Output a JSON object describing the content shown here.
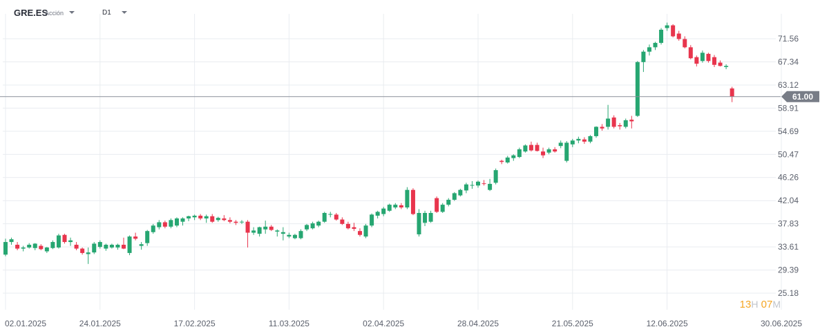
{
  "header": {
    "symbol": "GRE.ES",
    "type": "Acción",
    "timeframe": "D1"
  },
  "countdown": {
    "hours": "13",
    "h_unit": "H",
    "minutes": "07",
    "m_unit": "M"
  },
  "colors": {
    "up": "#26a671",
    "down": "#e8354d",
    "grid": "#e9ecf0",
    "axis_text": "#5a5f6b",
    "price_line": "#8a8f99",
    "price_tag": "#787d87"
  },
  "chart_data": {
    "type": "candlestick",
    "title": "",
    "xlabel": "",
    "ylabel": "",
    "ylim": [
      25.18,
      75.78
    ],
    "y_ticks": [
      "71.56",
      "67.34",
      "63.12",
      "58.91",
      "54.69",
      "50.47",
      "46.26",
      "42.04",
      "37.83",
      "33.61",
      "29.39",
      "25.18"
    ],
    "x_ticks": [
      "02.01.2025",
      "24.01.2025",
      "17.02.2025",
      "11.03.2025",
      "02.04.2025",
      "28.04.2025",
      "21.05.2025",
      "12.06.2025",
      "30.06.2025"
    ],
    "current_price": "61.00",
    "grid": true,
    "candles": [
      [
        "02.01.2025",
        32.2,
        35.1,
        31.9,
        34.5
      ],
      [
        "03.01.2025",
        34.5,
        35.3,
        34.0,
        35.0
      ],
      [
        "06.01.2025",
        34.0,
        34.5,
        33.0,
        33.3
      ],
      [
        "07.01.2025",
        33.3,
        33.8,
        32.8,
        33.5
      ],
      [
        "08.01.2025",
        33.5,
        34.3,
        33.3,
        34.0
      ],
      [
        "09.01.2025",
        33.4,
        34.3,
        33.0,
        34.2
      ],
      [
        "10.01.2025",
        33.8,
        34.1,
        33.0,
        33.2
      ],
      [
        "13.01.2025",
        32.8,
        33.6,
        32.5,
        33.5
      ],
      [
        "14.01.2025",
        33.4,
        34.8,
        33.2,
        34.5
      ],
      [
        "15.01.2025",
        33.5,
        36.0,
        33.3,
        35.7
      ],
      [
        "16.01.2025",
        35.8,
        36.0,
        34.2,
        34.5
      ],
      [
        "17.01.2025",
        34.5,
        35.3,
        33.8,
        34.8
      ],
      [
        "20.01.2025",
        34.0,
        34.5,
        33.0,
        33.3
      ],
      [
        "21.01.2025",
        33.3,
        33.5,
        32.2,
        32.5
      ],
      [
        "22.01.2025",
        32.3,
        33.5,
        30.5,
        32.6
      ],
      [
        "23.01.2025",
        32.6,
        34.5,
        32.3,
        34.2
      ],
      [
        "24.01.2025",
        33.6,
        34.8,
        33.3,
        34.5
      ],
      [
        "27.01.2025",
        33.3,
        34.2,
        32.9,
        34.0
      ],
      [
        "28.01.2025",
        33.5,
        34.2,
        33.3,
        34.0
      ],
      [
        "29.01.2025",
        33.5,
        34.2,
        33.1,
        34.0
      ],
      [
        "30.01.2025",
        34.0,
        35.3,
        33.2,
        33.3
      ],
      [
        "31.01.2025",
        32.5,
        35.7,
        32.1,
        35.5
      ],
      [
        "03.02.2025",
        35.5,
        36.2,
        34.8,
        35.1
      ],
      [
        "04.02.2025",
        33.8,
        34.5,
        33.1,
        34.1
      ],
      [
        "05.02.2025",
        34.3,
        36.7,
        33.8,
        36.5
      ],
      [
        "06.02.2025",
        36.3,
        37.8,
        36.0,
        37.5
      ],
      [
        "07.02.2025",
        37.2,
        38.5,
        36.8,
        38.1
      ],
      [
        "10.02.2025",
        38.1,
        38.4,
        37.0,
        37.3
      ],
      [
        "11.02.2025",
        37.3,
        38.8,
        37.0,
        38.5
      ],
      [
        "12.02.2025",
        37.5,
        39.0,
        37.2,
        38.8
      ],
      [
        "13.02.2025",
        38.2,
        39.0,
        37.5,
        38.8
      ],
      [
        "14.02.2025",
        38.8,
        39.3,
        38.3,
        39.2
      ],
      [
        "17.02.2025",
        39.0,
        39.5,
        38.5,
        39.3
      ],
      [
        "18.02.2025",
        39.3,
        39.6,
        38.5,
        38.8
      ],
      [
        "19.02.2025",
        38.8,
        39.5,
        38.0,
        39.2
      ],
      [
        "20.02.2025",
        39.2,
        39.6,
        38.0,
        38.2
      ],
      [
        "21.02.2025",
        38.5,
        39.1,
        38.2,
        38.9
      ],
      [
        "24.02.2025",
        38.8,
        39.4,
        38.3,
        38.5
      ],
      [
        "25.02.2025",
        38.5,
        39.0,
        37.9,
        38.2
      ],
      [
        "26.02.2025",
        38.2,
        38.5,
        37.6,
        38.0
      ],
      [
        "27.02.2025",
        38.1,
        38.5,
        37.8,
        38.2
      ],
      [
        "28.02.2025",
        38.2,
        38.5,
        33.5,
        36.2
      ],
      [
        "03.03.2025",
        36.2,
        37.2,
        35.8,
        36.6
      ],
      [
        "04.03.2025",
        36.0,
        37.3,
        35.5,
        37.2
      ],
      [
        "05.03.2025",
        36.8,
        38.4,
        36.0,
        37.3
      ],
      [
        "06.03.2025",
        37.3,
        37.6,
        36.5,
        36.7
      ],
      [
        "07.03.2025",
        36.4,
        36.8,
        35.5,
        36.6
      ],
      [
        "10.03.2025",
        36.0,
        37.2,
        34.8,
        36.3
      ],
      [
        "11.03.2025",
        35.5,
        36.2,
        35.2,
        35.8
      ],
      [
        "12.03.2025",
        35.2,
        36.0,
        35.0,
        35.8
      ],
      [
        "13.03.2025",
        35.2,
        36.8,
        35.0,
        36.5
      ],
      [
        "14.03.2025",
        36.8,
        37.8,
        36.5,
        37.6
      ],
      [
        "17.03.2025",
        37.0,
        38.2,
        36.8,
        37.9
      ],
      [
        "18.03.2025",
        37.5,
        38.4,
        37.2,
        38.2
      ],
      [
        "19.03.2025",
        38.2,
        40.0,
        38.0,
        39.8
      ],
      [
        "20.03.2025",
        39.5,
        40.0,
        39.0,
        39.6
      ],
      [
        "21.03.2025",
        39.5,
        39.8,
        38.4,
        38.6
      ],
      [
        "24.03.2025",
        38.6,
        39.0,
        37.6,
        37.8
      ],
      [
        "25.03.2025",
        37.8,
        38.2,
        36.8,
        37.0
      ],
      [
        "26.03.2025",
        37.2,
        38.0,
        36.5,
        36.9
      ],
      [
        "27.03.2025",
        36.5,
        37.0,
        35.5,
        35.8
      ],
      [
        "28.03.2025",
        35.5,
        37.8,
        35.2,
        37.5
      ],
      [
        "31.03.2025",
        37.5,
        39.7,
        37.2,
        39.5
      ],
      [
        "01.04.2025",
        39.3,
        40.2,
        38.8,
        40.0
      ],
      [
        "02.04.2025",
        39.6,
        40.9,
        39.2,
        40.6
      ],
      [
        "03.04.2025",
        40.2,
        41.5,
        40.0,
        41.3
      ],
      [
        "04.04.2025",
        40.8,
        41.6,
        40.5,
        41.3
      ],
      [
        "07.04.2025",
        41.2,
        41.6,
        40.5,
        40.8
      ],
      [
        "08.04.2025",
        40.8,
        44.5,
        40.5,
        44.0
      ],
      [
        "09.04.2025",
        44.0,
        44.3,
        39.4,
        39.6
      ],
      [
        "10.04.2025",
        35.9,
        40.5,
        35.5,
        39.8
      ],
      [
        "11.04.2025",
        38.0,
        40.2,
        37.4,
        39.8
      ],
      [
        "14.04.2025",
        38.2,
        40.2,
        38.0,
        39.8
      ],
      [
        "15.04.2025",
        42.5,
        42.8,
        39.8,
        40.0
      ],
      [
        "16.04.2025",
        40.0,
        41.6,
        39.8,
        41.3
      ],
      [
        "17.04.2025",
        41.3,
        42.5,
        41.0,
        42.2
      ],
      [
        "22.04.2025",
        42.2,
        43.6,
        42.0,
        43.4
      ],
      [
        "23.04.2025",
        43.0,
        44.2,
        42.8,
        44.0
      ],
      [
        "24.04.2025",
        43.9,
        45.3,
        43.4,
        45.0
      ],
      [
        "25.04.2025",
        44.8,
        45.6,
        44.2,
        44.9
      ],
      [
        "28.04.2025",
        44.8,
        45.7,
        44.4,
        45.5
      ],
      [
        "29.04.2025",
        45.2,
        45.8,
        44.8,
        45.1
      ],
      [
        "30.04.2025",
        44.0,
        46.0,
        43.8,
        45.1
      ],
      [
        "02.05.2025",
        45.3,
        47.9,
        45.0,
        47.6
      ],
      [
        "05.05.2025",
        49.3,
        49.5,
        48.7,
        49.1
      ],
      [
        "06.05.2025",
        49.0,
        50.2,
        48.8,
        49.9
      ],
      [
        "07.05.2025",
        49.8,
        50.5,
        49.3,
        50.3
      ],
      [
        "08.05.2025",
        50.0,
        51.7,
        49.8,
        51.4
      ],
      [
        "09.05.2025",
        51.0,
        52.3,
        50.8,
        52.1
      ],
      [
        "12.05.2025",
        52.2,
        52.8,
        51.0,
        51.2
      ],
      [
        "13.05.2025",
        52.2,
        52.6,
        51.0,
        51.1
      ],
      [
        "14.05.2025",
        51.0,
        51.7,
        49.8,
        50.3
      ],
      [
        "15.05.2025",
        50.8,
        51.7,
        50.5,
        51.4
      ],
      [
        "16.05.2025",
        51.4,
        51.8,
        50.8,
        51.0
      ],
      [
        "19.05.2025",
        52.0,
        53.0,
        51.6,
        52.6
      ],
      [
        "20.05.2025",
        49.3,
        52.9,
        49.0,
        52.6
      ],
      [
        "21.05.2025",
        52.3,
        53.3,
        51.8,
        53.0
      ],
      [
        "22.05.2025",
        53.0,
        53.7,
        52.5,
        53.3
      ],
      [
        "23.05.2025",
        53.2,
        53.6,
        52.4,
        52.8
      ],
      [
        "26.05.2025",
        52.8,
        54.0,
        52.5,
        53.8
      ],
      [
        "27.05.2025",
        53.8,
        55.6,
        53.5,
        55.5
      ],
      [
        "28.05.2025",
        55.5,
        56.0,
        54.8,
        55.2
      ],
      [
        "29.05.2025",
        55.5,
        59.5,
        55.0,
        57.0
      ],
      [
        "30.05.2025",
        57.2,
        57.6,
        55.2,
        55.5
      ],
      [
        "02.06.2025",
        55.8,
        56.2,
        55.0,
        55.6
      ],
      [
        "03.06.2025",
        55.5,
        57.0,
        55.2,
        56.7
      ],
      [
        "04.06.2025",
        56.8,
        57.5,
        55.2,
        56.5
      ],
      [
        "05.06.2025",
        57.5,
        67.5,
        57.3,
        67.3
      ],
      [
        "06.06.2025",
        67.3,
        69.5,
        65.5,
        69.2
      ],
      [
        "09.06.2025",
        69.2,
        70.5,
        68.5,
        70.0
      ],
      [
        "10.06.2025",
        70.0,
        71.0,
        69.5,
        70.8
      ],
      [
        "11.06.2025",
        70.8,
        73.5,
        70.5,
        73.2
      ],
      [
        "12.06.2025",
        73.5,
        74.5,
        73.0,
        74.0
      ],
      [
        "13.06.2025",
        74.0,
        74.2,
        71.8,
        72.0
      ],
      [
        "16.06.2025",
        72.5,
        73.0,
        71.2,
        71.5
      ],
      [
        "17.06.2025",
        71.5,
        72.0,
        69.8,
        70.0
      ],
      [
        "18.06.2025",
        70.0,
        70.4,
        67.8,
        68.0
      ],
      [
        "19.06.2025",
        68.2,
        68.5,
        66.5,
        67.0
      ],
      [
        "20.06.2025",
        67.5,
        69.4,
        67.2,
        69.0
      ],
      [
        "23.06.2025",
        68.8,
        69.0,
        67.2,
        67.5
      ],
      [
        "24.06.2025",
        68.2,
        68.6,
        66.4,
        66.8
      ],
      [
        "25.06.2025",
        67.2,
        67.6,
        66.5,
        66.6
      ],
      [
        "26.06.2025",
        66.4,
        66.9,
        66.0,
        66.6
      ],
      [
        "27.06.2025",
        62.5,
        62.8,
        60.0,
        61.0
      ]
    ]
  }
}
